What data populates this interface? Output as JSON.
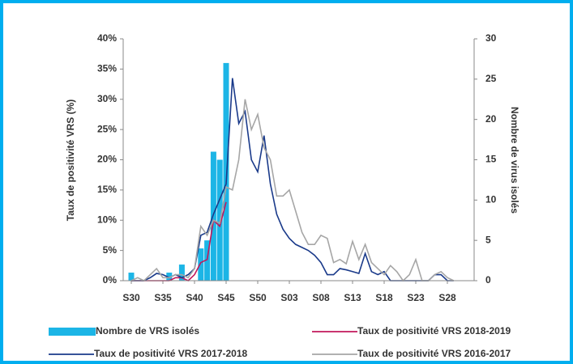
{
  "chart_data": {
    "type": "bar_line",
    "ylabel": "Taux de positivité VRS (%)",
    "y2label": "Nombre de virus isolés",
    "categories": [
      "S30",
      null,
      null,
      null,
      null,
      "S35",
      null,
      null,
      null,
      null,
      "S40",
      null,
      null,
      null,
      null,
      "S45",
      null,
      null,
      null,
      null,
      "S50",
      null,
      null,
      null,
      null,
      "S03",
      null,
      null,
      null,
      null,
      "S08",
      null,
      null,
      null,
      null,
      "S13",
      null,
      null,
      null,
      null,
      "S18",
      null,
      null,
      null,
      null,
      "S23",
      null,
      null,
      null,
      null,
      "S28",
      null
    ],
    "ylim": [
      0,
      40
    ],
    "yticks": [
      {
        "value": 0,
        "label": "0%"
      },
      {
        "value": 5,
        "label": "5%"
      },
      {
        "value": 10,
        "label": "10%"
      },
      {
        "value": 15,
        "label": "15%"
      },
      {
        "value": 20,
        "label": "20%"
      },
      {
        "value": 25,
        "label": "25%"
      },
      {
        "value": 30,
        "label": "30%"
      },
      {
        "value": 35,
        "label": "35%"
      },
      {
        "value": 40,
        "label": "40%"
      }
    ],
    "y2lim": [
      0,
      30
    ],
    "y2ticks": [
      0,
      5,
      10,
      15,
      20,
      25,
      30
    ],
    "series": [
      {
        "name": "Nombre de VRS isolés",
        "type": "bar",
        "axis": "y2",
        "color": "#1cb5e6",
        "values": [
          1,
          null,
          null,
          null,
          null,
          null,
          1,
          null,
          2,
          null,
          null,
          4,
          5,
          16,
          15,
          27,
          null,
          null,
          null,
          null,
          null,
          null,
          null,
          null,
          null,
          null,
          null,
          null,
          null,
          null,
          null,
          null,
          null,
          null,
          null,
          null,
          null,
          null,
          null,
          null,
          null,
          null,
          null,
          null,
          null,
          null,
          null,
          null,
          null,
          null,
          null,
          null
        ]
      },
      {
        "name": "Taux de positivité VRS 2018-2019",
        "type": "line",
        "color": "#c2185b",
        "values": [
          0,
          0,
          0,
          0,
          0,
          0,
          0,
          0.5,
          0.5,
          0,
          1,
          3,
          3.5,
          10,
          9,
          13,
          null,
          null,
          null,
          null,
          null,
          null,
          null,
          null,
          null,
          null,
          null,
          null,
          null,
          null,
          null,
          null,
          null,
          null,
          null,
          null,
          null,
          null,
          null,
          null,
          null,
          null,
          null,
          null,
          null,
          null,
          null,
          null,
          null,
          null,
          null,
          null
        ]
      },
      {
        "name": "Taux de positivité VRS 2017-2018",
        "type": "line",
        "color": "#1a3a8a",
        "values": [
          0,
          0,
          0,
          0.5,
          1.2,
          1,
          0.5,
          1,
          0.5,
          1,
          2,
          7.5,
          8,
          11,
          13.5,
          16,
          33.5,
          26,
          28,
          20,
          18,
          24,
          16,
          11,
          8.5,
          7,
          6,
          5.5,
          5,
          4.2,
          3,
          1,
          1,
          2,
          1.8,
          1.5,
          1.2,
          4.5,
          1.5,
          1,
          1.5,
          0,
          0,
          0,
          0,
          0,
          0,
          0,
          1,
          1,
          0,
          0
        ]
      },
      {
        "name": "Taux de positivité VRS 2016-2017",
        "type": "line",
        "color": "#a6a6a6",
        "values": [
          0,
          0.5,
          0,
          1,
          2,
          0.5,
          0.5,
          1,
          1,
          0.5,
          2,
          9,
          7.5,
          10,
          9.5,
          15.5,
          15,
          20,
          30,
          25,
          27.5,
          22,
          20,
          14,
          14,
          15,
          11.5,
          8,
          6,
          6,
          7.5,
          7,
          3,
          3.5,
          2.8,
          6.5,
          3.5,
          6,
          3,
          2,
          1,
          2.5,
          1.5,
          0,
          1,
          3.5,
          0,
          0,
          1,
          1.5,
          0.5,
          0
        ]
      }
    ]
  }
}
